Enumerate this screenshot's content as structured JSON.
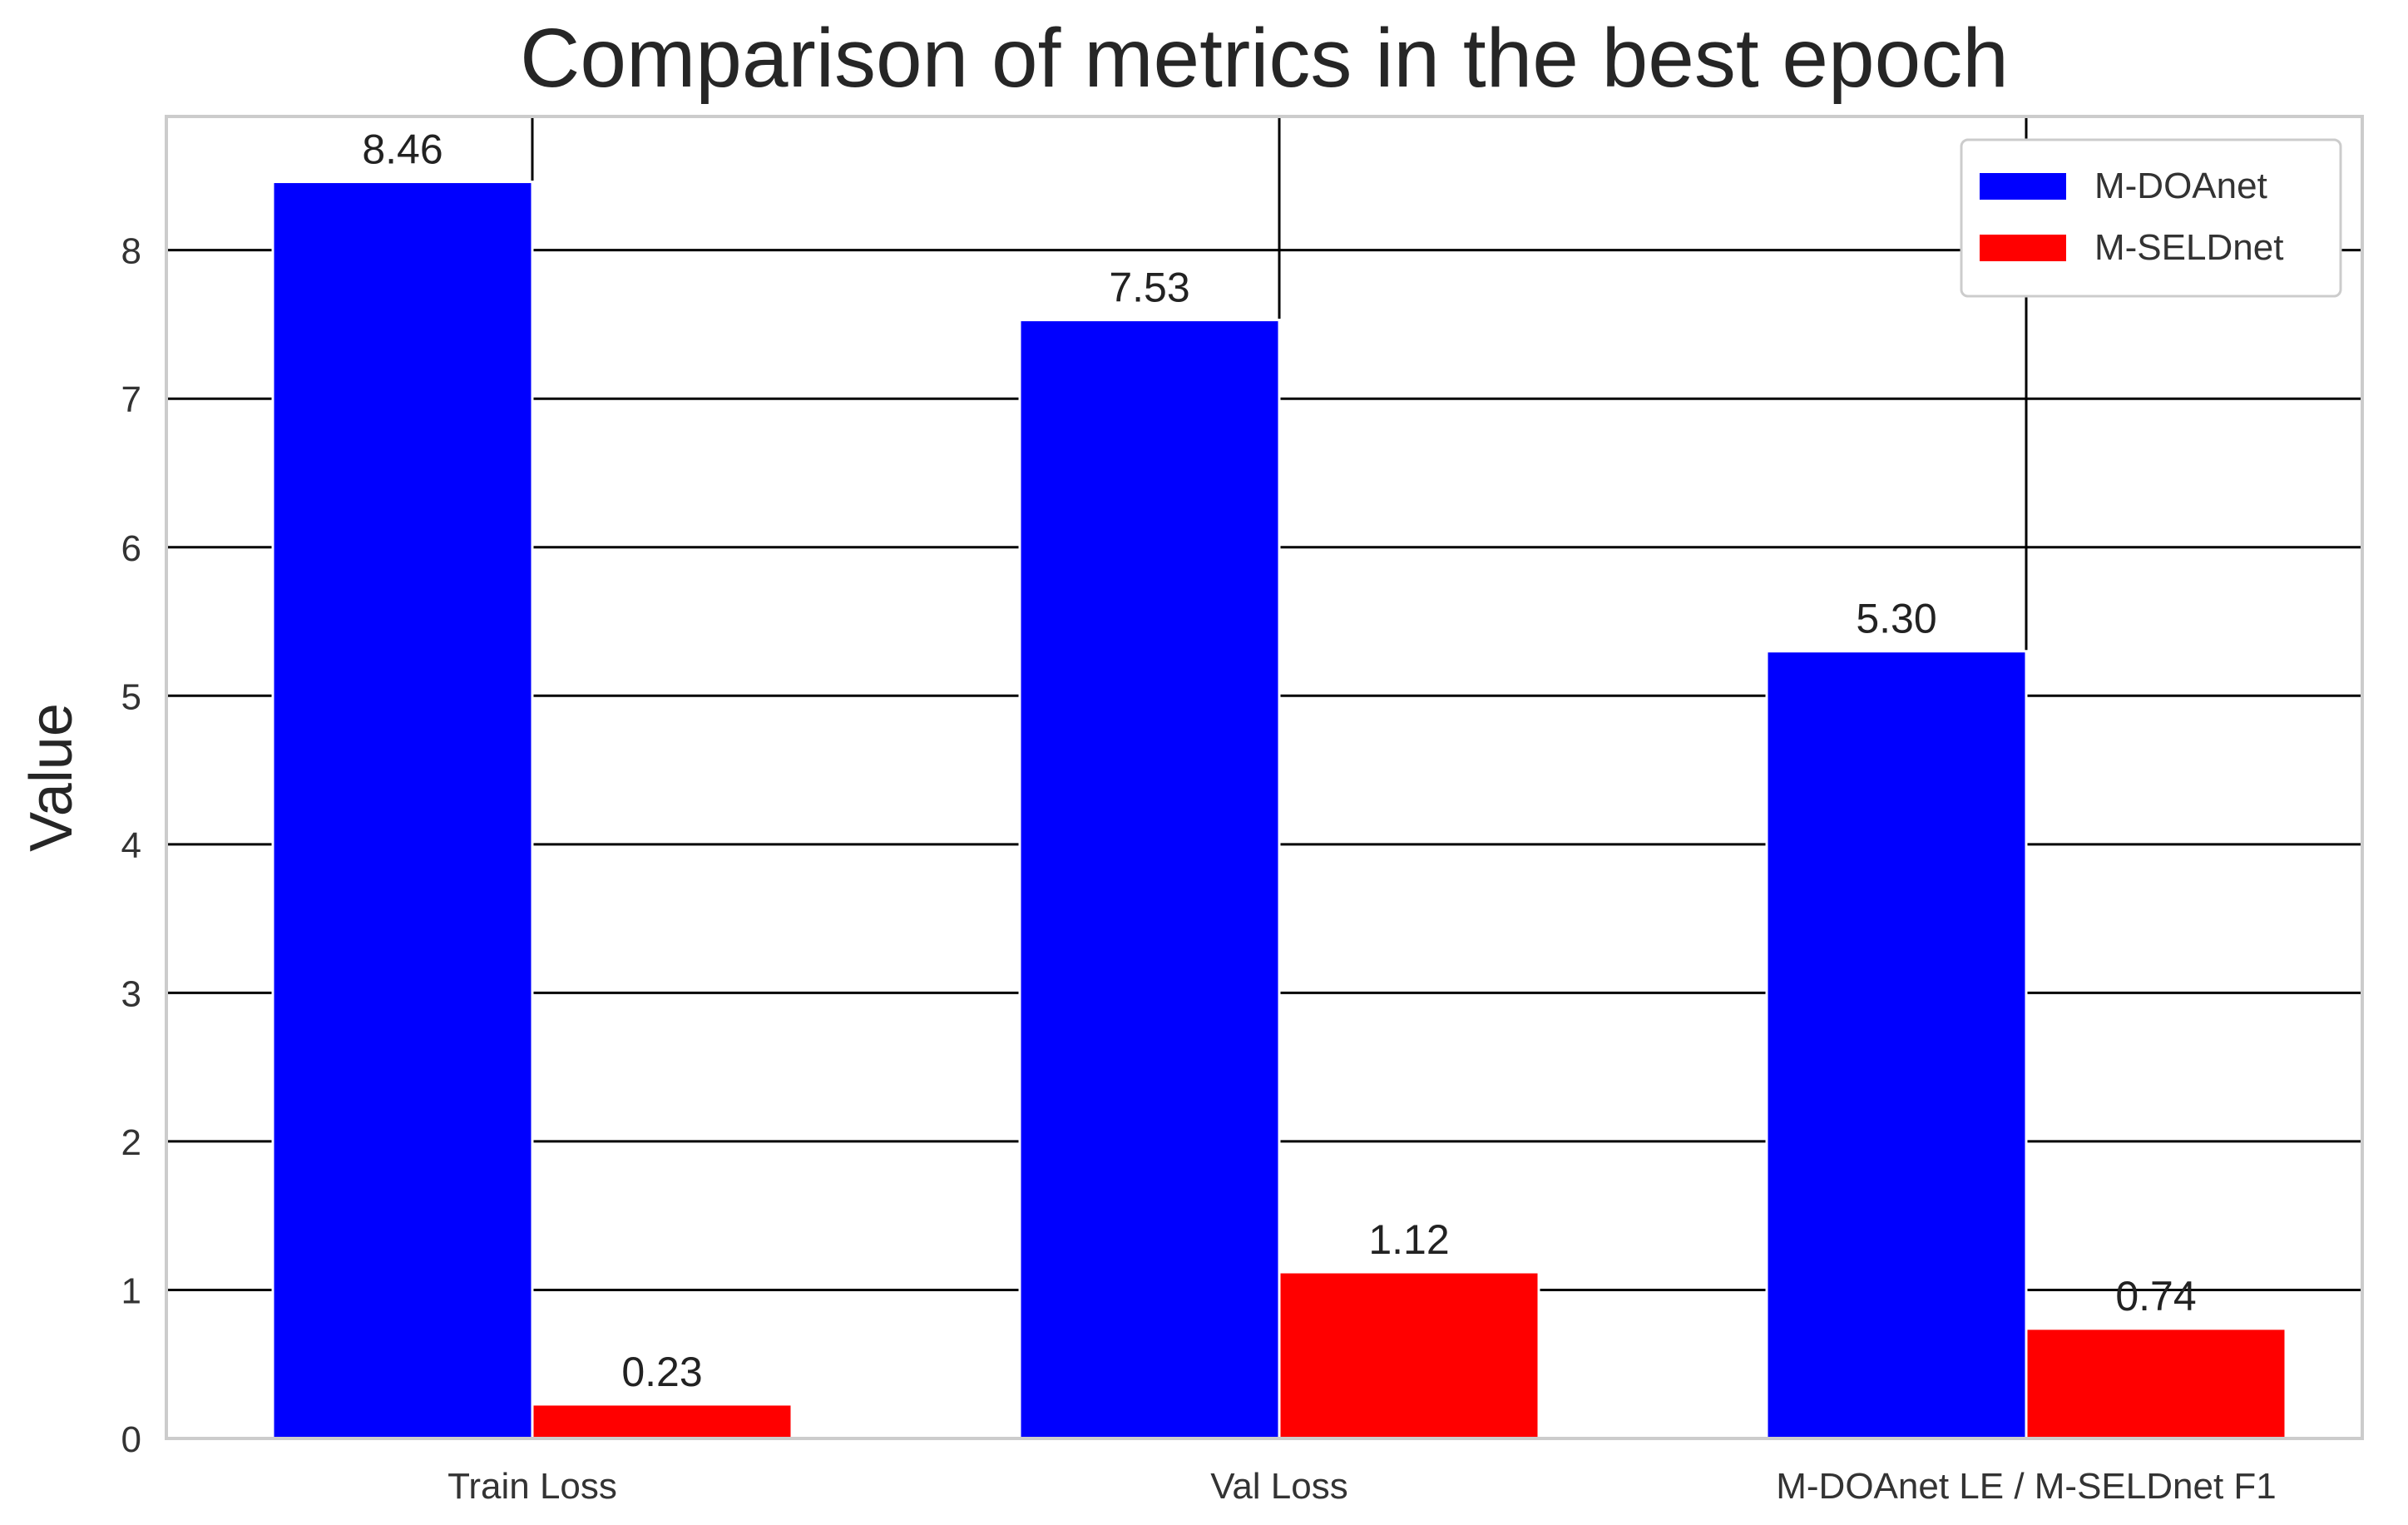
{
  "chart_data": {
    "type": "bar",
    "title": "Comparison of metrics in the best epoch",
    "xlabel": "",
    "ylabel": "Value",
    "categories": [
      "Train Loss",
      "Val Loss",
      "M-DOAnet LE / M-SELDnet F1"
    ],
    "series": [
      {
        "name": "M-DOAnet",
        "color": "#0000ff",
        "values": [
          8.46,
          7.53,
          5.3
        ],
        "labels": [
          "8.46",
          "7.53",
          "5.30"
        ]
      },
      {
        "name": "M-SELDnet",
        "color": "#ff0000",
        "values": [
          0.23,
          1.12,
          0.74
        ],
        "labels": [
          "0.23",
          "1.12",
          "0.74"
        ]
      }
    ],
    "ylim": [
      0,
      8.9
    ],
    "yticks": [
      0,
      1,
      2,
      3,
      4,
      5,
      6,
      7,
      8
    ],
    "ytick_labels": [
      "0",
      "1",
      "2",
      "3",
      "4",
      "5",
      "6",
      "7",
      "8"
    ],
    "grid": true,
    "legend_position": "top-right"
  }
}
